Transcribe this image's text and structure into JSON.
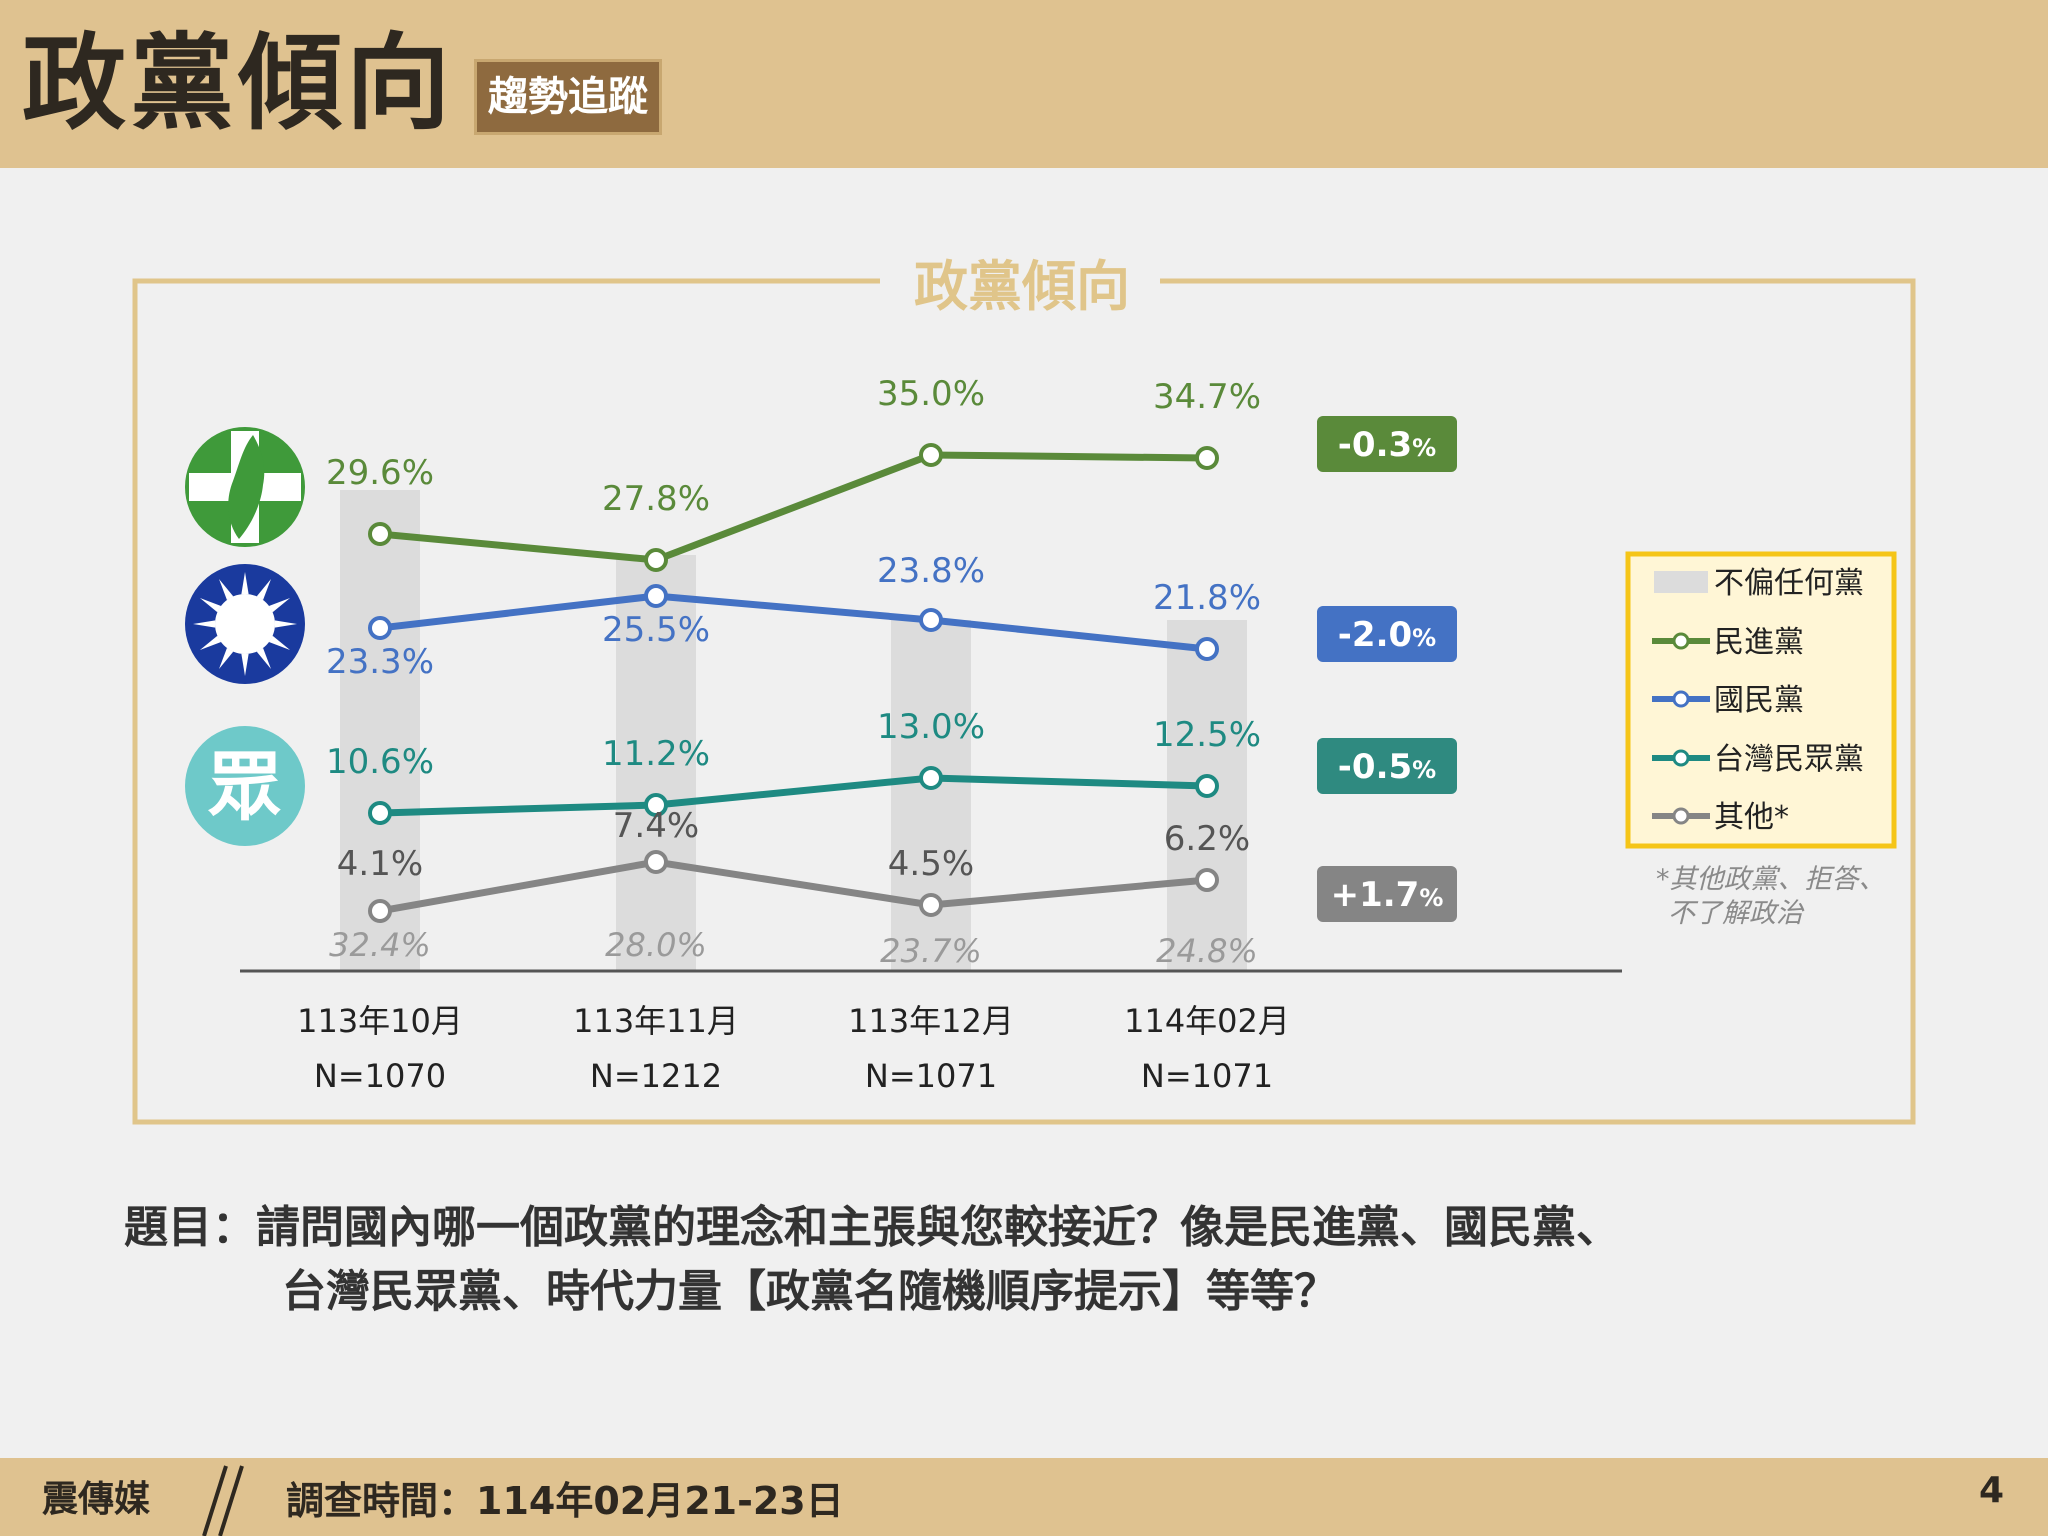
{
  "header": {
    "title": "政黨傾向",
    "badge": "趨勢追蹤"
  },
  "chart_data": {
    "type": "line",
    "title": "政黨傾向",
    "categories": [
      "113年10月",
      "113年11月",
      "113年12月",
      "114年02月"
    ],
    "sample_sizes": [
      "N=1070",
      "N=1212",
      "N=1071",
      "N=1071"
    ],
    "bar_series": {
      "name": "不偏任何黨",
      "values": [
        32.4,
        28.0,
        23.7,
        24.8
      ],
      "labels": [
        "32.4%",
        "28.0%",
        "23.7%",
        "24.8%"
      ],
      "color": "#dcdcdc"
    },
    "series": [
      {
        "name": "民進黨",
        "values": [
          29.6,
          27.8,
          35.0,
          34.7
        ],
        "labels": [
          "29.6%",
          "27.8%",
          "35.0%",
          "34.7%"
        ],
        "color": "#5a8a3a",
        "change": "-0.3",
        "change_unit": "%"
      },
      {
        "name": "國民黨",
        "values": [
          23.3,
          25.5,
          23.8,
          21.8
        ],
        "labels": [
          "23.3%",
          "25.5%",
          "23.8%",
          "21.8%"
        ],
        "color": "#4472c4",
        "change": "-2.0",
        "change_unit": "%"
      },
      {
        "name": "台灣民眾黨",
        "values": [
          10.6,
          11.2,
          13.0,
          12.5
        ],
        "labels": [
          "10.6%",
          "11.2%",
          "13.0%",
          "12.5%"
        ],
        "color": "#1e8a82",
        "change": "-0.5",
        "change_unit": "%"
      },
      {
        "name": "其他*",
        "values": [
          4.1,
          7.4,
          4.5,
          6.2
        ],
        "labels": [
          "4.1%",
          "7.4%",
          "4.5%",
          "6.2%"
        ],
        "color": "#858585",
        "change": "+1.7",
        "change_unit": "%"
      }
    ],
    "legend_position": "right",
    "footnote_lines": [
      "*其他政黨、拒答、",
      "不了解政治"
    ],
    "legend_order": [
      "不偏任何黨",
      "民進黨",
      "國民黨",
      "台灣民眾黨",
      "其他*"
    ]
  },
  "party_icons": [
    "dpp-logo-icon",
    "kmt-logo-icon",
    "tpp-logo-icon"
  ],
  "tpp_icon_glyph": "眾",
  "question": {
    "line1": "題目：請問國內哪一個政黨的理念和主張與您較接近？像是民進黨、國民黨、",
    "line2": "台灣民眾黨、時代力量【政黨名隨機順序提示】等等？"
  },
  "footer": {
    "brand": "震傳媒",
    "date": "調查時間：114年02月21-23日",
    "page": "4"
  },
  "colors": {
    "header_bg": "#dfc290",
    "frame": "#e0c58a",
    "badge_bg": "#8e6a3f",
    "legend_border": "#f5c518",
    "legend_bg": "#fff6d6"
  }
}
